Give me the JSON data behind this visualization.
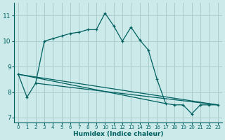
{
  "xlabel": "Humidex (Indice chaleur)",
  "background_color": "#cceaea",
  "grid_color": "#aacccc",
  "line_color": "#006060",
  "xlim": [
    -0.5,
    23.5
  ],
  "ylim": [
    6.8,
    11.5
  ],
  "yticks": [
    7,
    8,
    9,
    10,
    11
  ],
  "xticks": [
    0,
    1,
    2,
    3,
    4,
    5,
    6,
    7,
    8,
    9,
    10,
    11,
    12,
    13,
    14,
    15,
    16,
    17,
    18,
    19,
    20,
    21,
    22,
    23
  ],
  "series1_x": [
    0,
    1,
    2,
    3,
    4,
    5,
    6,
    7,
    8,
    9,
    10,
    11,
    12,
    13,
    14,
    15,
    16,
    17,
    18,
    19,
    20,
    21,
    22,
    23
  ],
  "series1_y": [
    8.7,
    7.8,
    8.35,
    10.0,
    10.1,
    10.2,
    10.3,
    10.35,
    10.45,
    10.45,
    11.1,
    10.6,
    10.0,
    10.55,
    10.05,
    9.65,
    8.5,
    7.55,
    7.5,
    7.5,
    7.15,
    7.5,
    7.5,
    7.5
  ],
  "series2_x": [
    0,
    23
  ],
  "series2_y": [
    8.7,
    7.5
  ],
  "series3_x": [
    2,
    23
  ],
  "series3_y": [
    8.35,
    7.5
  ],
  "series4_x": [
    0,
    17
  ],
  "series4_y": [
    8.7,
    7.55
  ]
}
